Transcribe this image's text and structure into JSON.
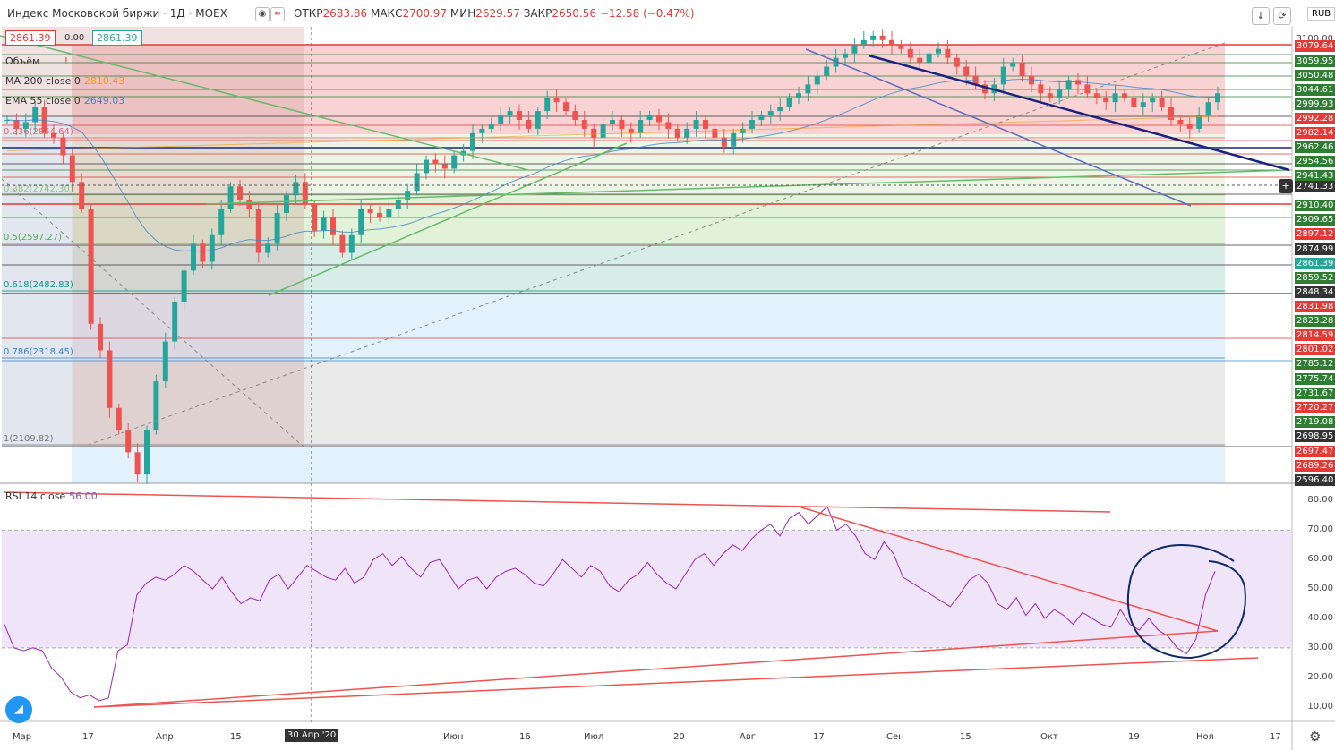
{
  "header": {
    "title": "Индекс Московской биржи · 1Д · MOEX",
    "open_label": "ОТКР",
    "open": "2683.86",
    "high_label": "МАКС",
    "high": "2700.97",
    "low_label": "МИН",
    "low": "2629.57",
    "close_label": "ЗАКР",
    "close": "2650.56",
    "change": "−12.58 (−0.47%)",
    "currency": "RUB"
  },
  "badges": {
    "bid": "2861.39",
    "spread": "0.00",
    "ask": "2861.39"
  },
  "indicators": [
    {
      "label": "Объём",
      "value": "",
      "color": "#333333"
    },
    {
      "label": "MA 200 close 0",
      "value": "2810.43",
      "color": "#f39c12"
    },
    {
      "label": "EMA 55 close 0",
      "value": "2649.03",
      "color": "#3d85c6"
    }
  ],
  "fib_levels": [
    {
      "label": "0.236(2854.64)",
      "color": "#e06666"
    },
    {
      "label": "0.382(2742.30)",
      "color": "#93c47d"
    },
    {
      "label": "0.5(2597.27)",
      "color": "#4caf50"
    },
    {
      "label": "0.618(2482.83)",
      "color": "#009688"
    },
    {
      "label": "0.786(2318.45)",
      "color": "#3d85c6"
    },
    {
      "label": "1(2109.82)",
      "color": "#777777"
    }
  ],
  "price_labels": [
    {
      "v": "3079.64",
      "c": "#e53935"
    },
    {
      "v": "3059.95",
      "c": "#2e7d32"
    },
    {
      "v": "3050.48",
      "c": "#2e7d32"
    },
    {
      "v": "3044.61",
      "c": "#2e7d32"
    },
    {
      "v": "2999.93",
      "c": "#2e7d32"
    },
    {
      "v": "2992.28",
      "c": "#e53935"
    },
    {
      "v": "2982.14",
      "c": "#e53935"
    },
    {
      "v": "2962.46",
      "c": "#2e7d32"
    },
    {
      "v": "2954.56",
      "c": "#2e7d32"
    },
    {
      "v": "2941.43",
      "c": "#2e7d32"
    },
    {
      "v": "2741.33",
      "c": "#333333"
    },
    {
      "v": "2910.40",
      "c": "#2e7d32"
    },
    {
      "v": "2909.65",
      "c": "#2e7d32"
    },
    {
      "v": "2897.12",
      "c": "#e53935"
    },
    {
      "v": "2874.99",
      "c": "#333333"
    },
    {
      "v": "2861.39",
      "c": "#26a69a"
    },
    {
      "v": "2859.52",
      "c": "#2e7d32"
    },
    {
      "v": "2848.34",
      "c": "#333333"
    },
    {
      "v": "2831.98",
      "c": "#e53935"
    },
    {
      "v": "2823.28",
      "c": "#2e7d32"
    },
    {
      "v": "2814.59",
      "c": "#e53935"
    },
    {
      "v": "2801.02",
      "c": "#e53935"
    },
    {
      "v": "2785.12",
      "c": "#2e7d32"
    },
    {
      "v": "2775.74",
      "c": "#2e7d32"
    },
    {
      "v": "2731.67",
      "c": "#2e7d32"
    },
    {
      "v": "2720.27",
      "c": "#e53935"
    },
    {
      "v": "2719.08",
      "c": "#2e7d32"
    },
    {
      "v": "2698.95",
      "c": "#333333"
    },
    {
      "v": "2697.47",
      "c": "#e53935"
    },
    {
      "v": "2689.26",
      "c": "#e53935"
    },
    {
      "v": "2596.40",
      "c": "#333333"
    }
  ],
  "top_tick": "3100.00",
  "rsi": {
    "label": "RSI 14 close",
    "value": "56.00",
    "ticks": [
      "80.00",
      "70.00",
      "60.00",
      "50.00",
      "40.00",
      "30.00",
      "20.00",
      "10.00"
    ]
  },
  "x_axis": {
    "labels": [
      "Мар",
      "17",
      "Апр",
      "15",
      "Июн",
      "16",
      "Июл",
      "20",
      "Авг",
      "17",
      "Сен",
      "15",
      "Окт",
      "19",
      "Ноя",
      "17"
    ],
    "cursor_label": "30 Апр '20"
  },
  "icons": [
    "arrow-down-icon",
    "fullscreen-icon",
    "settings-icon",
    "tradingview-logo-icon",
    "alert-icon",
    "plus-icon"
  ],
  "chart_data": {
    "type": "candlestick",
    "title": "Индекс Московской биржи · 1Д · MOEX",
    "ylim": [
      2080,
      3110
    ],
    "closes": [
      2900,
      2880,
      2895,
      2930,
      2870,
      2860,
      2820,
      2760,
      2700,
      2440,
      2380,
      2250,
      2200,
      2150,
      2100,
      2200,
      2310,
      2400,
      2490,
      2560,
      2620,
      2580,
      2640,
      2700,
      2750,
      2720,
      2700,
      2600,
      2620,
      2690,
      2730,
      2760,
      2710,
      2650,
      2680,
      2640,
      2600,
      2640,
      2700,
      2690,
      2680,
      2700,
      2720,
      2740,
      2780,
      2810,
      2800,
      2790,
      2820,
      2830,
      2870,
      2880,
      2890,
      2910,
      2920,
      2900,
      2880,
      2920,
      2950,
      2940,
      2920,
      2900,
      2880,
      2860,
      2890,
      2900,
      2880,
      2870,
      2900,
      2910,
      2895,
      2880,
      2860,
      2880,
      2900,
      2880,
      2860,
      2840,
      2870,
      2880,
      2900,
      2910,
      2920,
      2930,
      2950,
      2960,
      2980,
      3000,
      3020,
      3040,
      3050,
      3070,
      3080,
      3090,
      3080,
      3070,
      3060,
      3040,
      3030,
      3050,
      3060,
      3040,
      3020,
      3000,
      2980,
      2960,
      2980,
      3020,
      3030,
      3000,
      2980,
      2960,
      2950,
      2970,
      2990,
      2980,
      2960,
      2950,
      2940,
      2960,
      2950,
      2930,
      2940,
      2950,
      2930,
      2900,
      2890,
      2880,
      2910,
      2940,
      2960
    ],
    "rsi": [
      38,
      30,
      29,
      30,
      29,
      23,
      20,
      15,
      13,
      14,
      12,
      13,
      29,
      31,
      48,
      52,
      54,
      53,
      55,
      58,
      56,
      53,
      50,
      54,
      49,
      45,
      47,
      46,
      53,
      55,
      50,
      54,
      58,
      56,
      54,
      53,
      57,
      52,
      54,
      60,
      62,
      58,
      61,
      57,
      54,
      59,
      60,
      55,
      50,
      53,
      54,
      50,
      54,
      56,
      57,
      55,
      52,
      51,
      55,
      60,
      57,
      54,
      58,
      56,
      51,
      49,
      53,
      55,
      59,
      55,
      52,
      50,
      55,
      60,
      62,
      58,
      62,
      65,
      63,
      67,
      70,
      72,
      68,
      74,
      76,
      72,
      75,
      78,
      70,
      72,
      68,
      62,
      60,
      66,
      62,
      54,
      52,
      50,
      48,
      46,
      44,
      48,
      53,
      55,
      52,
      45,
      43,
      47,
      41,
      45,
      40,
      43,
      41,
      38,
      42,
      40,
      38,
      37,
      43,
      38,
      36,
      40,
      36,
      34,
      30,
      28,
      33,
      48,
      56
    ]
  }
}
